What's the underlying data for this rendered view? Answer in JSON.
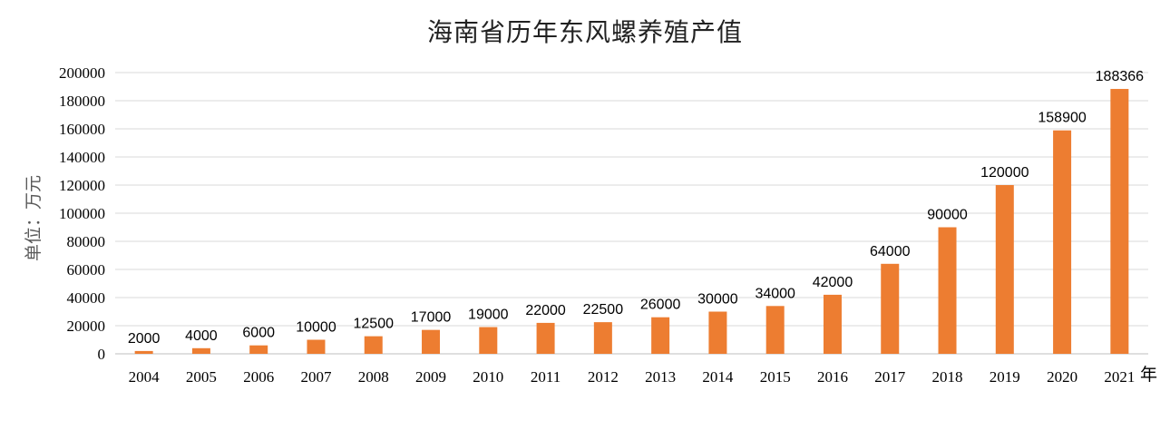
{
  "chart_data": {
    "type": "bar",
    "title": "海南省历年东风螺养殖产值",
    "ylabel": "单位：万元",
    "xunit": "年",
    "categories": [
      "2004",
      "2005",
      "2006",
      "2007",
      "2008",
      "2009",
      "2010",
      "2011",
      "2012",
      "2013",
      "2014",
      "2015",
      "2016",
      "2017",
      "2018",
      "2019",
      "2020",
      "2021"
    ],
    "values": [
      2000,
      4000,
      6000,
      10000,
      12500,
      17000,
      19000,
      22000,
      22500,
      26000,
      30000,
      34000,
      42000,
      64000,
      90000,
      120000,
      158900,
      188366
    ],
    "ylim": [
      0,
      200000
    ],
    "yticks": [
      0,
      20000,
      40000,
      60000,
      80000,
      100000,
      120000,
      140000,
      160000,
      180000,
      200000
    ],
    "bar_color": "#ED7D31",
    "grid": true
  }
}
